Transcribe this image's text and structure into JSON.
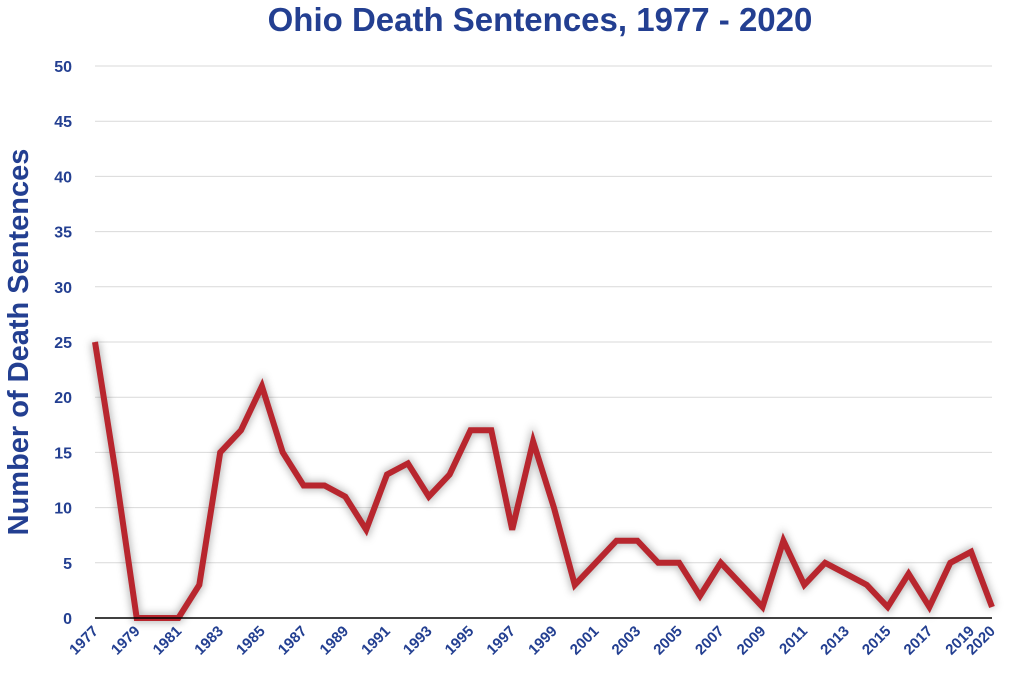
{
  "chart_data": {
    "type": "line",
    "title": "Ohio Death Sentences, 1977 - 2020",
    "xlabel": "",
    "ylabel": "Number of Death Sentences",
    "ylim": [
      0,
      50
    ],
    "yticks": [
      0,
      5,
      10,
      15,
      20,
      25,
      30,
      35,
      40,
      45,
      50
    ],
    "xlim": [
      1977,
      2020
    ],
    "xticks": [
      1977,
      1979,
      1981,
      1983,
      1985,
      1987,
      1989,
      1991,
      1993,
      1995,
      1997,
      1999,
      2001,
      2003,
      2005,
      2007,
      2009,
      2011,
      2013,
      2015,
      2017,
      2019,
      2020
    ],
    "grid": true,
    "legend": "none",
    "colors": {
      "line": "#b8262e",
      "text": "#233f91",
      "grid": "#d9d9d9"
    },
    "series": [
      {
        "x": [
          1977,
          1978,
          1979,
          1980,
          1981,
          1982,
          1983,
          1984,
          1985,
          1986,
          1987,
          1988,
          1989,
          1990,
          1991,
          1992,
          1993,
          1994,
          1995,
          1996,
          1997,
          1998,
          1999,
          2000,
          2001,
          2002,
          2003,
          2004,
          2005,
          2006,
          2007,
          2008,
          2009,
          2010,
          2011,
          2012,
          2013,
          2014,
          2015,
          2016,
          2017,
          2018,
          2019,
          2020
        ],
        "values": [
          25,
          13,
          0,
          0,
          0,
          3,
          15,
          17,
          21,
          15,
          12,
          12,
          11,
          8,
          13,
          14,
          11,
          13,
          17,
          17,
          8,
          16,
          10,
          3,
          5,
          7,
          7,
          5,
          5,
          2,
          5,
          3,
          1,
          7,
          3,
          5,
          4,
          3,
          1,
          4,
          1,
          5,
          6,
          1
        ]
      }
    ]
  }
}
